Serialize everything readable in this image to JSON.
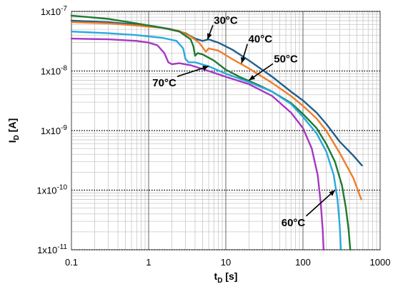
{
  "chart_data": {
    "type": "line",
    "xscale": "log",
    "yscale": "log",
    "xlim": [
      0.1,
      1000
    ],
    "ylim": [
      1e-11,
      1e-07
    ],
    "grid": true,
    "xlabel": {
      "main": "t",
      "sub": "D",
      "rest": " [s]"
    },
    "ylabel": {
      "main": "I",
      "sub": "D",
      "rest": " [A]"
    },
    "x_ticks": [
      {
        "value": 0.1,
        "label": "0.1"
      },
      {
        "value": 1,
        "label": "1"
      },
      {
        "value": 10,
        "label": "10"
      },
      {
        "value": 100,
        "label": "100"
      },
      {
        "value": 1000,
        "label": "1000"
      }
    ],
    "y_ticks": [
      {
        "value": 1e-11,
        "base": "1x10",
        "exp": "-11"
      },
      {
        "value": 1e-10,
        "base": "1x10",
        "exp": "-10"
      },
      {
        "value": 1e-09,
        "base": "1x10",
        "exp": "-9"
      },
      {
        "value": 1e-08,
        "base": "1x10",
        "exp": "-8"
      },
      {
        "value": 1e-07,
        "base": "1x10",
        "exp": "-7"
      }
    ],
    "series": [
      {
        "name": "30°C",
        "color": "#1f5f8b",
        "points": [
          [
            0.1,
            7e-08
          ],
          [
            0.3,
            6.6e-08
          ],
          [
            0.7,
            6e-08
          ],
          [
            1.2,
            5.6e-08
          ],
          [
            2,
            5e-08
          ],
          [
            3,
            4.3e-08
          ],
          [
            4,
            3.5e-08
          ],
          [
            5,
            3.2e-08
          ],
          [
            6,
            3.4e-08
          ],
          [
            8,
            3e-08
          ],
          [
            12,
            2.3e-08
          ],
          [
            20,
            1.5e-08
          ],
          [
            40,
            8e-09
          ],
          [
            70,
            4.5e-09
          ],
          [
            100,
            3.2e-09
          ],
          [
            150,
            2e-09
          ],
          [
            200,
            1.3e-09
          ],
          [
            300,
            6.5e-10
          ],
          [
            450,
            3.8e-10
          ],
          [
            580,
            2.6e-10
          ]
        ]
      },
      {
        "name": "40°C",
        "color": "#f07d2a",
        "points": [
          [
            0.1,
            6.6e-08
          ],
          [
            0.3,
            6.3e-08
          ],
          [
            0.7,
            5.8e-08
          ],
          [
            1.5,
            5.3e-08
          ],
          [
            2.5,
            4.7e-08
          ],
          [
            3.5,
            3.8e-08
          ],
          [
            4.5,
            3e-08
          ],
          [
            5,
            2.5e-08
          ],
          [
            5.5,
            2.1e-08
          ],
          [
            6,
            2.4e-08
          ],
          [
            8,
            2.2e-08
          ],
          [
            12,
            1.6e-08
          ],
          [
            20,
            1.1e-08
          ],
          [
            40,
            6.3e-09
          ],
          [
            70,
            3.8e-09
          ],
          [
            100,
            2.6e-09
          ],
          [
            150,
            1.6e-09
          ],
          [
            200,
            1e-09
          ],
          [
            300,
            4.2e-10
          ],
          [
            450,
            1.6e-10
          ],
          [
            570,
            7e-11
          ]
        ]
      },
      {
        "name": "50°C",
        "color": "#1e7a2e",
        "points": [
          [
            0.1,
            8.5e-08
          ],
          [
            0.3,
            7.5e-08
          ],
          [
            0.7,
            6.3e-08
          ],
          [
            1.5,
            5.3e-08
          ],
          [
            2.5,
            4.6e-08
          ],
          [
            3.5,
            3.4e-08
          ],
          [
            3.8,
            2.6e-08
          ],
          [
            4,
            1.8e-08
          ],
          [
            4.3,
            2e-08
          ],
          [
            5,
            1.9e-08
          ],
          [
            7,
            1.5e-08
          ],
          [
            10,
            1.05e-08
          ],
          [
            15,
            8e-09
          ],
          [
            25,
            6e-09
          ],
          [
            40,
            4.5e-09
          ],
          [
            70,
            2.9e-09
          ],
          [
            100,
            1.9e-09
          ],
          [
            150,
            1.1e-09
          ],
          [
            200,
            6e-10
          ],
          [
            260,
            3e-10
          ],
          [
            320,
            1.2e-10
          ],
          [
            360,
            5e-11
          ],
          [
            390,
            2.2e-11
          ],
          [
            410,
            1e-11
          ]
        ]
      },
      {
        "name": "60°C",
        "color": "#29a9e0",
        "points": [
          [
            0.1,
            4.6e-08
          ],
          [
            0.3,
            4.3e-08
          ],
          [
            0.7,
            4e-08
          ],
          [
            1.5,
            3.6e-08
          ],
          [
            2.3,
            3.2e-08
          ],
          [
            2.8,
            2.4e-08
          ],
          [
            3,
            1.6e-08
          ],
          [
            3.3,
            1.4e-08
          ],
          [
            4,
            1.4e-08
          ],
          [
            6,
            1.2e-08
          ],
          [
            10,
            9e-09
          ],
          [
            20,
            6.5e-09
          ],
          [
            40,
            4.5e-09
          ],
          [
            70,
            2.8e-09
          ],
          [
            100,
            1.7e-09
          ],
          [
            150,
            9e-10
          ],
          [
            200,
            4.5e-10
          ],
          [
            250,
            1.8e-10
          ],
          [
            280,
            7e-11
          ],
          [
            300,
            2.5e-11
          ],
          [
            310,
            1e-11
          ]
        ]
      },
      {
        "name": "70°C",
        "color": "#a637c2",
        "points": [
          [
            0.1,
            3.5e-08
          ],
          [
            0.3,
            3.4e-08
          ],
          [
            0.7,
            3.2e-08
          ],
          [
            1,
            3e-08
          ],
          [
            1.3,
            2.7e-08
          ],
          [
            1.6,
            2e-08
          ],
          [
            1.8,
            1.4e-08
          ],
          [
            2,
            1.3e-08
          ],
          [
            2.5,
            1.35e-08
          ],
          [
            3.5,
            1.25e-08
          ],
          [
            6,
            1e-08
          ],
          [
            10,
            8e-09
          ],
          [
            20,
            6e-09
          ],
          [
            40,
            3.8e-09
          ],
          [
            70,
            2e-09
          ],
          [
            100,
            1.1e-09
          ],
          [
            130,
            5e-10
          ],
          [
            155,
            1.8e-10
          ],
          [
            170,
            6e-11
          ],
          [
            180,
            2.2e-11
          ],
          [
            185,
            1e-11
          ]
        ]
      }
    ],
    "annotations": [
      {
        "text": "30°C",
        "text_at": [
          10,
          6.2e-08
        ],
        "arrow_to": [
          5.8,
          3.4e-08
        ]
      },
      {
        "text": "40°C",
        "text_at": [
          28,
          3e-08
        ],
        "arrow_to": [
          16,
          1.35e-08
        ]
      },
      {
        "text": "50°C",
        "text_at": [
          60,
          1.4e-08
        ],
        "arrow_to": [
          20,
          7e-09
        ]
      },
      {
        "text": "70°C",
        "text_at": [
          1.6,
          5.5e-09
        ],
        "arrow_to": [
          6.0,
          1.2e-08
        ]
      },
      {
        "text": "60°C",
        "text_at": [
          75,
          2.5e-11
        ],
        "arrow_to": [
          260,
          1e-10
        ]
      }
    ]
  }
}
